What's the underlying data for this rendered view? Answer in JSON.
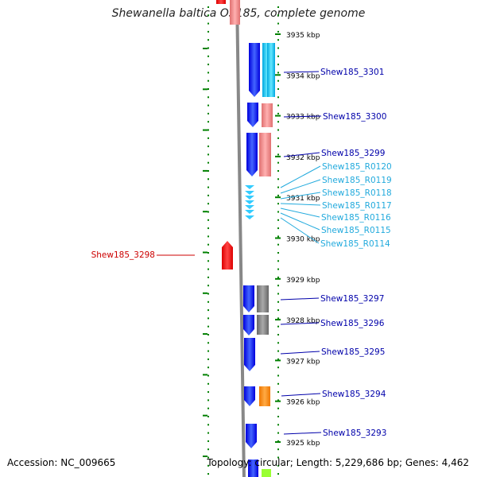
{
  "title": "Shewanella baltica OS185, complete genome",
  "accession": "Accession: NC_009665",
  "topology": "Topology: circular; Length: 5,229,686 bp; Genes: 4,462",
  "colors": {
    "ruler": "#008000",
    "genome_line": "#888888",
    "forward_gene": "#0000ff",
    "cds_pink": "#f08080",
    "cds_cyan": "#00ccff",
    "cds_gray": "#777777",
    "cds_orange": "#ff8800",
    "cds_lime": "#99ff33",
    "rna": "#33ccff",
    "reverse_gene": "#ff0000",
    "label_blue": "#0000aa",
    "label_cyan": "#22aadd",
    "label_red": "#cc0000"
  },
  "kbp_ticks": [
    {
      "label": "3935 kbp",
      "kbp": 3935
    },
    {
      "label": "3934 kbp",
      "kbp": 3934
    },
    {
      "label": "3933 kbp",
      "kbp": 3933
    },
    {
      "label": "3932 kbp",
      "kbp": 3932
    },
    {
      "label": "3931 kbp",
      "kbp": 3931
    },
    {
      "label": "3930 kbp",
      "kbp": 3930
    },
    {
      "label": "3929 kbp",
      "kbp": 3929
    },
    {
      "label": "3928 kbp",
      "kbp": 3928
    },
    {
      "label": "3927 kbp",
      "kbp": 3927
    },
    {
      "label": "3926 kbp",
      "kbp": 3926
    },
    {
      "label": "3925 kbp",
      "kbp": 3925
    }
  ],
  "gene_labels": [
    {
      "text": "Shew185_3301",
      "color": "label_blue"
    },
    {
      "text": "Shew185_3300",
      "color": "label_blue"
    },
    {
      "text": "Shew185_3299",
      "color": "label_blue"
    },
    {
      "text": "Shew185_R0120",
      "color": "label_cyan"
    },
    {
      "text": "Shew185_R0119",
      "color": "label_cyan"
    },
    {
      "text": "Shew185_R0118",
      "color": "label_cyan"
    },
    {
      "text": "Shew185_R0117",
      "color": "label_cyan"
    },
    {
      "text": "Shew185_R0116",
      "color": "label_cyan"
    },
    {
      "text": "Shew185_R0115",
      "color": "label_cyan"
    },
    {
      "text": "Shew185_R0114",
      "color": "label_cyan"
    },
    {
      "text": "Shew185_3298",
      "color": "label_red"
    },
    {
      "text": "Shew185_3297",
      "color": "label_blue"
    },
    {
      "text": "Shew185_3296",
      "color": "label_blue"
    },
    {
      "text": "Shew185_3295",
      "color": "label_blue"
    },
    {
      "text": "Shew185_3294",
      "color": "label_blue"
    },
    {
      "text": "Shew185_3293",
      "color": "label_blue"
    }
  ]
}
